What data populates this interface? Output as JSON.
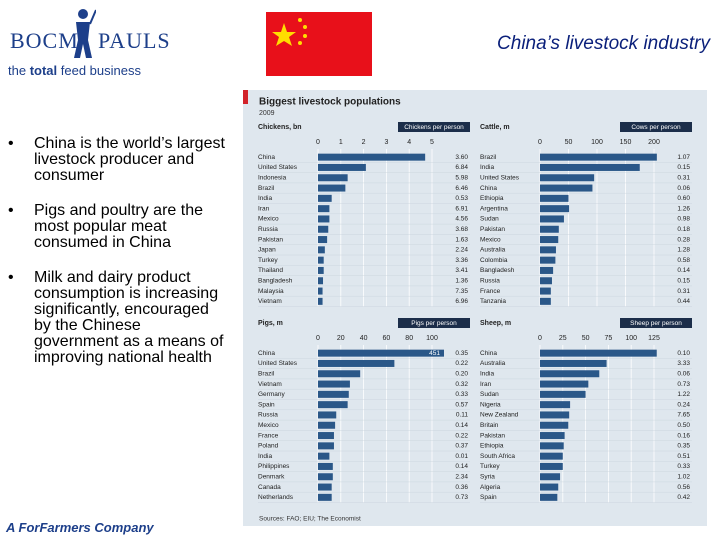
{
  "logo": {
    "left": "BOCM",
    "right": "PAULS",
    "tagline": [
      "the ",
      "total",
      " feed business"
    ]
  },
  "title": "China’s livestock industry",
  "bullets": [
    "China is the world’s largest livestock producer and consumer",
    "Pigs and poultry are the most popular meat consumed in China",
    "Milk and dairy product consumption is increasing significantly, encouraged by the Chinese government as a means of improving national health"
  ],
  "footer": "A ForFarmers Company",
  "figure": {
    "title": "Biggest livestock populations",
    "subtitle": "2009",
    "source": "Sources: FAO; EIU; The Economist"
  },
  "chart_data": [
    {
      "type": "bar",
      "orientation": "horizontal",
      "title": "Chickens, bn",
      "column_title": "Chickens per person",
      "color": "#2a5788",
      "categories": [
        "China",
        "United States",
        "Indonesia",
        "Brazil",
        "India",
        "Iran",
        "Mexico",
        "Russia",
        "Pakistan",
        "Japan",
        "Turkey",
        "Thailand",
        "Bangladesh",
        "Malaysia",
        "Vietnam"
      ],
      "values": [
        4.7,
        2.1,
        1.3,
        1.2,
        0.6,
        0.5,
        0.5,
        0.45,
        0.4,
        0.3,
        0.25,
        0.25,
        0.22,
        0.2,
        0.2
      ],
      "per_person": [
        "3.60",
        "6.84",
        "5.98",
        "6.46",
        "0.53",
        "6.91",
        "4.56",
        "3.68",
        "1.63",
        "2.24",
        "3.36",
        "3.41",
        "1.36",
        "7.35",
        "6.96"
      ],
      "xlim": [
        0,
        5
      ],
      "xticks": [
        0,
        1,
        2,
        3,
        4,
        5
      ]
    },
    {
      "type": "bar",
      "orientation": "horizontal",
      "title": "Cattle, m",
      "column_title": "Cows per person",
      "color": "#2a5788",
      "categories": [
        "Brazil",
        "India",
        "United States",
        "China",
        "Ethiopia",
        "Argentina",
        "Sudan",
        "Pakistan",
        "Mexico",
        "Australia",
        "Colombia",
        "Bangladesh",
        "Russia",
        "France",
        "Tanzania"
      ],
      "values": [
        205,
        175,
        95,
        92,
        50,
        51,
        42,
        33,
        32,
        28,
        27,
        23,
        21,
        19,
        19
      ],
      "per_person": [
        "1.07",
        "0.15",
        "0.31",
        "0.06",
        "0.60",
        "1.26",
        "0.98",
        "0.18",
        "0.28",
        "1.28",
        "0.58",
        "0.14",
        "0.15",
        "0.31",
        "0.44"
      ],
      "xlim": [
        0,
        200
      ],
      "xticks": [
        0,
        50,
        100,
        150,
        200
      ]
    },
    {
      "type": "bar",
      "orientation": "horizontal",
      "title": "Pigs, m",
      "column_title": "Pigs per person",
      "color": "#2a5788",
      "categories": [
        "China",
        "United States",
        "Brazil",
        "Vietnam",
        "Germany",
        "Spain",
        "Russia",
        "Mexico",
        "France",
        "Poland",
        "India",
        "Philippines",
        "Denmark",
        "Canada",
        "Netherlands"
      ],
      "values": [
        451,
        67,
        37,
        28,
        27,
        26,
        16,
        15,
        14,
        14,
        10,
        13,
        13,
        12,
        12
      ],
      "value_labels": [
        "451",
        null,
        null,
        null,
        null,
        null,
        null,
        null,
        null,
        null,
        null,
        null,
        null,
        null,
        null
      ],
      "per_person": [
        "0.35",
        "0.22",
        "0.20",
        "0.32",
        "0.33",
        "0.57",
        "0.11",
        "0.14",
        "0.22",
        "0.37",
        "0.01",
        "0.14",
        "2.34",
        "0.36",
        "0.73"
      ],
      "xlim": [
        0,
        100
      ],
      "xticks": [
        0,
        20,
        40,
        60,
        80,
        100
      ]
    },
    {
      "type": "bar",
      "orientation": "horizontal",
      "title": "Sheep, m",
      "column_title": "Sheep per person",
      "color": "#2a5788",
      "categories": [
        "China",
        "Australia",
        "India",
        "Iran",
        "Sudan",
        "Nigeria",
        "New Zealand",
        "Britain",
        "Pakistan",
        "Ethiopia",
        "South Africa",
        "Turkey",
        "Syria",
        "Algeria",
        "Spain"
      ],
      "values": [
        128,
        73,
        65,
        53,
        50,
        33,
        32,
        31,
        27,
        26,
        25,
        25,
        22,
        20,
        19
      ],
      "per_person": [
        "0.10",
        "3.33",
        "0.06",
        "0.73",
        "1.22",
        "0.24",
        "7.65",
        "0.50",
        "0.16",
        "0.35",
        "0.51",
        "0.33",
        "1.02",
        "0.56",
        "0.42"
      ],
      "xlim": [
        0,
        125
      ],
      "xticks": [
        0,
        25,
        50,
        75,
        100,
        125
      ]
    }
  ]
}
